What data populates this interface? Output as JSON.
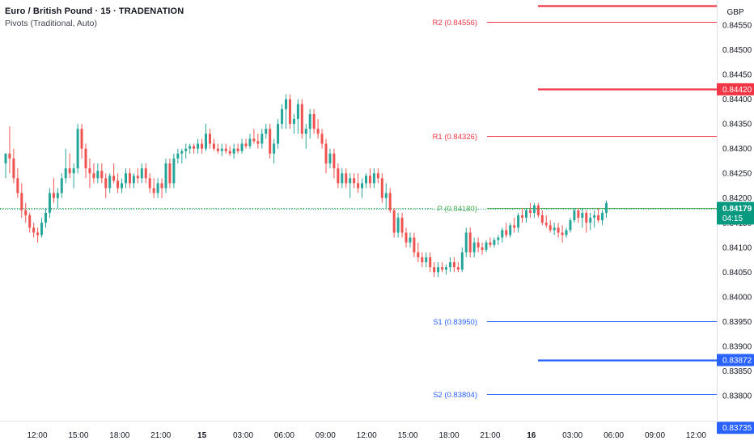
{
  "header": {
    "symbol_title": "Euro / British Pound · 15 · TRADENATION",
    "indicator": "Pivots (Traditional, Auto)"
  },
  "currency_label": "GBP",
  "colors": {
    "up": "#26a69a",
    "down": "#ef5350",
    "resistance": "#f23645",
    "support": "#2962ff",
    "pivot": "#4caf50",
    "last_price": "#089981"
  },
  "chart_data": {
    "type": "candlestick",
    "y_range": [
      0.8369,
      0.8459
    ],
    "y_ticks": [
      "0.84550",
      "0.84500",
      "0.84450",
      "0.84400",
      "0.84350",
      "0.84300",
      "0.84250",
      "0.84200",
      "0.84150",
      "0.84100",
      "0.84050",
      "0.84000",
      "0.83950",
      "0.83900",
      "0.83850",
      "0.83800"
    ],
    "x_ticks": [
      {
        "label": "12:00",
        "bold": false
      },
      {
        "label": "15:00",
        "bold": false
      },
      {
        "label": "18:00",
        "bold": false
      },
      {
        "label": "21:00",
        "bold": false
      },
      {
        "label": "15",
        "bold": true
      },
      {
        "label": "03:00",
        "bold": false
      },
      {
        "label": "06:00",
        "bold": false
      },
      {
        "label": "09:00",
        "bold": false
      },
      {
        "label": "12:00",
        "bold": false
      },
      {
        "label": "15:00",
        "bold": false
      },
      {
        "label": "18:00",
        "bold": false
      },
      {
        "label": "21:00",
        "bold": false
      },
      {
        "label": "16",
        "bold": true
      },
      {
        "label": "03:00",
        "bold": false
      },
      {
        "label": "06:00",
        "bold": false
      },
      {
        "label": "09:00",
        "bold": false
      },
      {
        "label": "12:00",
        "bold": false
      }
    ],
    "pivots": [
      {
        "label": "R2 (0.84556)",
        "value": 0.84556,
        "kind": "resistance"
      },
      {
        "label": "R1 (0.84326)",
        "value": 0.84326,
        "kind": "resistance"
      },
      {
        "label": "P (0.84180)",
        "value": 0.8418,
        "kind": "pivot"
      },
      {
        "label": "S1 (0.83950)",
        "value": 0.8395,
        "kind": "support"
      },
      {
        "label": "S2 (0.83804)",
        "value": 0.83804,
        "kind": "support"
      }
    ],
    "current_day_levels": [
      {
        "value": 0.8459,
        "kind": "resistance"
      },
      {
        "value": 0.8442,
        "kind": "resistance"
      },
      {
        "value": 0.83872,
        "kind": "support"
      }
    ],
    "price_tags": [
      {
        "label": "0.84420",
        "value": 0.8442,
        "kind": "resistance"
      },
      {
        "label": "0.83872",
        "value": 0.83872,
        "kind": "support"
      },
      {
        "label": "0.83735",
        "value": 0.83735,
        "kind": "support"
      }
    ],
    "last_price": {
      "value": 0.84179,
      "label": "0.84179",
      "countdown": "04:15"
    },
    "candles": [
      [
        0.8427,
        0.8429,
        0.8424,
        0.8429
      ],
      [
        0.8429,
        0.84345,
        0.8425,
        0.8428
      ],
      [
        0.8428,
        0.843,
        0.8423,
        0.8424
      ],
      [
        0.8424,
        0.8426,
        0.842,
        0.8421
      ],
      [
        0.8421,
        0.8423,
        0.8416,
        0.84175
      ],
      [
        0.84175,
        0.8419,
        0.8415,
        0.84165
      ],
      [
        0.84165,
        0.8417,
        0.8413,
        0.8414
      ],
      [
        0.8414,
        0.8415,
        0.8412,
        0.8413
      ],
      [
        0.8413,
        0.8414,
        0.8411,
        0.84125
      ],
      [
        0.84125,
        0.8416,
        0.8412,
        0.8415
      ],
      [
        0.8415,
        0.8418,
        0.8414,
        0.8417
      ],
      [
        0.8417,
        0.8422,
        0.8416,
        0.8421
      ],
      [
        0.8421,
        0.8424,
        0.8419,
        0.842
      ],
      [
        0.842,
        0.8422,
        0.8418,
        0.8421
      ],
      [
        0.8421,
        0.8425,
        0.842,
        0.8424
      ],
      [
        0.8424,
        0.843,
        0.8423,
        0.8426
      ],
      [
        0.8426,
        0.8429,
        0.8424,
        0.8425
      ],
      [
        0.8425,
        0.8427,
        0.8422,
        0.8426
      ],
      [
        0.8426,
        0.8435,
        0.8425,
        0.8434
      ],
      [
        0.8434,
        0.8435,
        0.8428,
        0.843
      ],
      [
        0.843,
        0.8431,
        0.8424,
        0.8426
      ],
      [
        0.8426,
        0.8428,
        0.8422,
        0.8425
      ],
      [
        0.8425,
        0.8427,
        0.8423,
        0.8424
      ],
      [
        0.8424,
        0.8427,
        0.8423,
        0.84255
      ],
      [
        0.84255,
        0.8427,
        0.8423,
        0.8424
      ],
      [
        0.8424,
        0.8425,
        0.842,
        0.8422
      ],
      [
        0.8422,
        0.8425,
        0.8421,
        0.84245
      ],
      [
        0.84245,
        0.8427,
        0.8423,
        0.84235
      ],
      [
        0.84235,
        0.8425,
        0.8421,
        0.8422
      ],
      [
        0.8422,
        0.8424,
        0.8421,
        0.8423
      ],
      [
        0.8423,
        0.8426,
        0.8422,
        0.8425
      ],
      [
        0.8425,
        0.8426,
        0.8422,
        0.8423
      ],
      [
        0.8423,
        0.8425,
        0.8422,
        0.84245
      ],
      [
        0.84245,
        0.8426,
        0.8423,
        0.8424
      ],
      [
        0.8424,
        0.8427,
        0.8423,
        0.8426
      ],
      [
        0.8426,
        0.8427,
        0.8423,
        0.8424
      ],
      [
        0.8424,
        0.8425,
        0.8421,
        0.8422
      ],
      [
        0.8422,
        0.8424,
        0.842,
        0.8421
      ],
      [
        0.8421,
        0.8424,
        0.842,
        0.8423
      ],
      [
        0.8423,
        0.8424,
        0.842,
        0.8422
      ],
      [
        0.8422,
        0.8428,
        0.8421,
        0.8427
      ],
      [
        0.8427,
        0.8428,
        0.8422,
        0.8423
      ],
      [
        0.8423,
        0.8429,
        0.8422,
        0.8428
      ],
      [
        0.8428,
        0.843,
        0.8427,
        0.8429
      ],
      [
        0.8429,
        0.843,
        0.8427,
        0.84295
      ],
      [
        0.84295,
        0.8431,
        0.8428,
        0.843
      ],
      [
        0.843,
        0.8431,
        0.8429,
        0.84305
      ],
      [
        0.84305,
        0.8431,
        0.8429,
        0.843
      ],
      [
        0.843,
        0.8432,
        0.8429,
        0.8431
      ],
      [
        0.8431,
        0.8432,
        0.8429,
        0.843
      ],
      [
        0.843,
        0.8435,
        0.84295,
        0.8433
      ],
      [
        0.8433,
        0.8434,
        0.843,
        0.8431
      ],
      [
        0.8431,
        0.8432,
        0.84295,
        0.843
      ],
      [
        0.843,
        0.8431,
        0.8429,
        0.84295
      ],
      [
        0.84295,
        0.8431,
        0.84285,
        0.843
      ],
      [
        0.843,
        0.8431,
        0.8429,
        0.84295
      ],
      [
        0.84295,
        0.84305,
        0.84285,
        0.8429
      ],
      [
        0.8429,
        0.8431,
        0.8428,
        0.843
      ],
      [
        0.843,
        0.8431,
        0.8429,
        0.84295
      ],
      [
        0.84295,
        0.8432,
        0.8429,
        0.8431
      ],
      [
        0.8431,
        0.8432,
        0.843,
        0.84305
      ],
      [
        0.84305,
        0.8433,
        0.843,
        0.8432
      ],
      [
        0.8432,
        0.8434,
        0.8431,
        0.84315
      ],
      [
        0.84315,
        0.8433,
        0.843,
        0.8431
      ],
      [
        0.8431,
        0.8434,
        0.843,
        0.8433
      ],
      [
        0.8433,
        0.8435,
        0.8432,
        0.8434
      ],
      [
        0.8434,
        0.8435,
        0.8428,
        0.8429
      ],
      [
        0.8429,
        0.8432,
        0.8427,
        0.8431
      ],
      [
        0.8431,
        0.8436,
        0.843,
        0.8435
      ],
      [
        0.8435,
        0.8439,
        0.8434,
        0.8438
      ],
      [
        0.8438,
        0.8441,
        0.8434,
        0.844
      ],
      [
        0.844,
        0.8441,
        0.8434,
        0.8435
      ],
      [
        0.8435,
        0.8437,
        0.8433,
        0.8436
      ],
      [
        0.8436,
        0.844,
        0.8433,
        0.8439
      ],
      [
        0.8439,
        0.844,
        0.8432,
        0.8433
      ],
      [
        0.8433,
        0.8435,
        0.843,
        0.8434
      ],
      [
        0.8434,
        0.8438,
        0.8432,
        0.8437
      ],
      [
        0.8437,
        0.8438,
        0.8433,
        0.8434
      ],
      [
        0.8434,
        0.8436,
        0.8432,
        0.8433
      ],
      [
        0.8433,
        0.8434,
        0.843,
        0.8431
      ],
      [
        0.8431,
        0.8432,
        0.8425,
        0.8427
      ],
      [
        0.8427,
        0.843,
        0.8426,
        0.8429
      ],
      [
        0.8429,
        0.843,
        0.8424,
        0.8426
      ],
      [
        0.8426,
        0.8427,
        0.8422,
        0.8423
      ],
      [
        0.8423,
        0.8426,
        0.8422,
        0.8425
      ],
      [
        0.8425,
        0.8426,
        0.8422,
        0.8423
      ],
      [
        0.8423,
        0.8425,
        0.842,
        0.8424
      ],
      [
        0.8424,
        0.8425,
        0.8422,
        0.8423
      ],
      [
        0.8423,
        0.8425,
        0.8421,
        0.8422
      ],
      [
        0.8422,
        0.8424,
        0.842,
        0.8423
      ],
      [
        0.8423,
        0.8425,
        0.8422,
        0.84245
      ],
      [
        0.84245,
        0.8426,
        0.8422,
        0.8423
      ],
      [
        0.8423,
        0.8426,
        0.8422,
        0.8425
      ],
      [
        0.8425,
        0.8426,
        0.8423,
        0.8424
      ],
      [
        0.8424,
        0.8425,
        0.8419,
        0.842
      ],
      [
        0.842,
        0.8423,
        0.8418,
        0.8421
      ],
      [
        0.8421,
        0.8422,
        0.8417,
        0.84175
      ],
      [
        0.84175,
        0.8418,
        0.8412,
        0.8413
      ],
      [
        0.8413,
        0.8417,
        0.8412,
        0.8416
      ],
      [
        0.8416,
        0.8417,
        0.8412,
        0.8413
      ],
      [
        0.8413,
        0.8414,
        0.841,
        0.8411
      ],
      [
        0.8411,
        0.8413,
        0.841,
        0.8412
      ],
      [
        0.8412,
        0.8413,
        0.8408,
        0.8409
      ],
      [
        0.8409,
        0.8411,
        0.8407,
        0.8408
      ],
      [
        0.8408,
        0.8409,
        0.8406,
        0.8407
      ],
      [
        0.8407,
        0.8409,
        0.8406,
        0.8408
      ],
      [
        0.8408,
        0.8409,
        0.8405,
        0.8406
      ],
      [
        0.8406,
        0.8407,
        0.8404,
        0.8405
      ],
      [
        0.8405,
        0.8407,
        0.8404,
        0.8406
      ],
      [
        0.8406,
        0.8407,
        0.8405,
        0.84055
      ],
      [
        0.84055,
        0.84065,
        0.84045,
        0.8406
      ],
      [
        0.8406,
        0.8408,
        0.8405,
        0.8407
      ],
      [
        0.8407,
        0.8408,
        0.8405,
        0.8406
      ],
      [
        0.8406,
        0.8407,
        0.8405,
        0.84055
      ],
      [
        0.84055,
        0.841,
        0.8405,
        0.8409
      ],
      [
        0.8409,
        0.8414,
        0.8408,
        0.8413
      ],
      [
        0.8413,
        0.8414,
        0.8408,
        0.8409
      ],
      [
        0.8409,
        0.8412,
        0.8408,
        0.8411
      ],
      [
        0.8411,
        0.8412,
        0.8409,
        0.841
      ],
      [
        0.841,
        0.8411,
        0.84085,
        0.84095
      ],
      [
        0.84095,
        0.84115,
        0.8409,
        0.8411
      ],
      [
        0.8411,
        0.8412,
        0.841,
        0.84105
      ],
      [
        0.84105,
        0.8412,
        0.841,
        0.84115
      ],
      [
        0.84115,
        0.84125,
        0.84105,
        0.8412
      ],
      [
        0.8412,
        0.8414,
        0.8411,
        0.84135
      ],
      [
        0.84135,
        0.8415,
        0.8412,
        0.84125
      ],
      [
        0.84125,
        0.8415,
        0.8412,
        0.84145
      ],
      [
        0.84145,
        0.8416,
        0.8413,
        0.8414
      ],
      [
        0.8414,
        0.8417,
        0.8413,
        0.84165
      ],
      [
        0.84165,
        0.8418,
        0.8415,
        0.8416
      ],
      [
        0.8416,
        0.8418,
        0.8415,
        0.84175
      ],
      [
        0.84175,
        0.8419,
        0.8416,
        0.8417
      ],
      [
        0.8417,
        0.8419,
        0.8416,
        0.84185
      ],
      [
        0.84185,
        0.8419,
        0.8416,
        0.84165
      ],
      [
        0.84165,
        0.84175,
        0.84145,
        0.8415
      ],
      [
        0.8415,
        0.84165,
        0.8414,
        0.84145
      ],
      [
        0.84145,
        0.84155,
        0.8413,
        0.84135
      ],
      [
        0.84135,
        0.8415,
        0.84125,
        0.8414
      ],
      [
        0.8414,
        0.8415,
        0.8412,
        0.8413
      ],
      [
        0.8413,
        0.84145,
        0.8411,
        0.84125
      ],
      [
        0.84125,
        0.8414,
        0.8412,
        0.84135
      ],
      [
        0.84135,
        0.8416,
        0.8413,
        0.84155
      ],
      [
        0.84155,
        0.8418,
        0.8415,
        0.84175
      ],
      [
        0.84175,
        0.8418,
        0.8415,
        0.8416
      ],
      [
        0.8416,
        0.8418,
        0.8414,
        0.8417
      ],
      [
        0.8417,
        0.84175,
        0.8413,
        0.8415
      ],
      [
        0.8415,
        0.8417,
        0.84135,
        0.8416
      ],
      [
        0.8416,
        0.84175,
        0.8414,
        0.84165
      ],
      [
        0.84165,
        0.8418,
        0.8415,
        0.84155
      ],
      [
        0.84155,
        0.84175,
        0.84145,
        0.8417
      ],
      [
        0.8417,
        0.84195,
        0.8416,
        0.8419
      ]
    ]
  }
}
